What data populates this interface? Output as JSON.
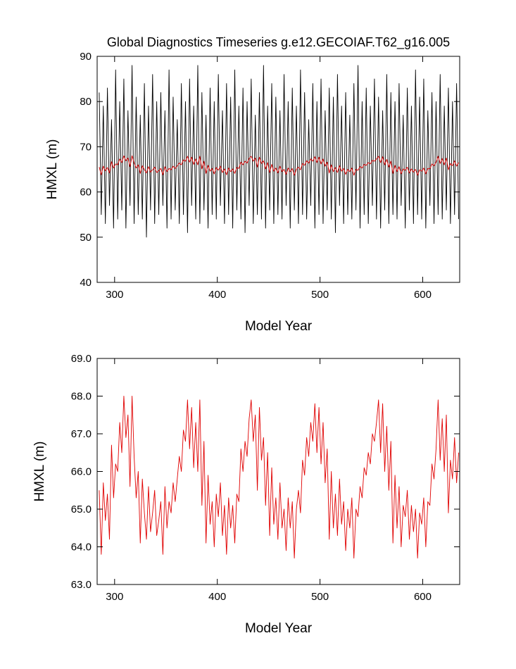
{
  "chart_data": [
    {
      "type": "line",
      "title": "Global Diagnostics Timeseries g.e12.GECOIAF.T62_g16.005",
      "x_label": "Model Year",
      "y_label": "HMXL (m)",
      "xlim": [
        283,
        636
      ],
      "xticks": [
        300,
        400,
        500,
        600
      ],
      "ylim": [
        40,
        90
      ],
      "yticks": [
        40,
        50,
        60,
        70,
        80,
        90
      ],
      "x": [
        285,
        287,
        289,
        291,
        293,
        295,
        297,
        299,
        301,
        303,
        305,
        307,
        309,
        311,
        313,
        315,
        317,
        319,
        321,
        323,
        325,
        327,
        329,
        331,
        333,
        335,
        337,
        339,
        341,
        343,
        345,
        347,
        349,
        351,
        353,
        355,
        357,
        359,
        361,
        363,
        365,
        367,
        369,
        371,
        373,
        375,
        377,
        379,
        381,
        383,
        385,
        387,
        389,
        391,
        393,
        395,
        397,
        399,
        401,
        403,
        405,
        407,
        409,
        411,
        413,
        415,
        417,
        419,
        421,
        423,
        425,
        427,
        429,
        431,
        433,
        435,
        437,
        439,
        441,
        443,
        445,
        447,
        449,
        451,
        453,
        455,
        457,
        459,
        461,
        463,
        465,
        467,
        469,
        471,
        473,
        475,
        477,
        479,
        481,
        483,
        485,
        487,
        489,
        491,
        493,
        495,
        497,
        499,
        501,
        503,
        505,
        507,
        509,
        511,
        513,
        515,
        517,
        519,
        521,
        523,
        525,
        527,
        529,
        531,
        533,
        535,
        537,
        539,
        541,
        543,
        545,
        547,
        549,
        551,
        553,
        555,
        557,
        559,
        561,
        563,
        565,
        567,
        569,
        571,
        573,
        575,
        577,
        579,
        581,
        583,
        585,
        587,
        589,
        591,
        593,
        595,
        597,
        599,
        601,
        603,
        605,
        607,
        609,
        611,
        613,
        615,
        617,
        619,
        621,
        623,
        625,
        627,
        629,
        631,
        633,
        635
      ],
      "series": [
        {
          "color": "#000000",
          "values": [
            82,
            55,
            79,
            53,
            83,
            57,
            76,
            52,
            87,
            54,
            80,
            56,
            85,
            52,
            78,
            57,
            88,
            53,
            81,
            55,
            77,
            54,
            84,
            50,
            79,
            56,
            86,
            53,
            80,
            55,
            82,
            57,
            78,
            52,
            87,
            54,
            81,
            56,
            76,
            53,
            84,
            55,
            80,
            51,
            85,
            57,
            79,
            54,
            88,
            53,
            82,
            56,
            77,
            52,
            83,
            55,
            80,
            54,
            86,
            57,
            78,
            53,
            84,
            55,
            81,
            52,
            87,
            56,
            79,
            54,
            83,
            51,
            80,
            57,
            85,
            53,
            77,
            55,
            82,
            54,
            88,
            52,
            79,
            56,
            84,
            53,
            81,
            55,
            78,
            54,
            86,
            57,
            80,
            52,
            83,
            56,
            79,
            53,
            87,
            55,
            82,
            54,
            76,
            57,
            84,
            52,
            80,
            55,
            85,
            53,
            78,
            56,
            83,
            54,
            81,
            51,
            86,
            57,
            79,
            53,
            82,
            55,
            77,
            54,
            84,
            56,
            88,
            52,
            80,
            55,
            83,
            53,
            79,
            57,
            85,
            54,
            81,
            52,
            78,
            56,
            86,
            53,
            82,
            55,
            80,
            54,
            84,
            57,
            77,
            52,
            83,
            56,
            79,
            53,
            87,
            55,
            81,
            54,
            85,
            52,
            78,
            57,
            82,
            53,
            80,
            55,
            86,
            54,
            79,
            56,
            83,
            53,
            80,
            55,
            84,
            54
          ]
        },
        {
          "color": "#e00000",
          "values": [
            65.5,
            63.8,
            65.7,
            64.7,
            65.4,
            64.2,
            66.7,
            65.3,
            66.2,
            66.0,
            67.3,
            66.5,
            68.0,
            66.9,
            67.5,
            65.6,
            68.0,
            66.4,
            65.3,
            66.0,
            64.1,
            65.8,
            64.9,
            64.2,
            65.6,
            64.4,
            64.9,
            65.5,
            64.3,
            64.7,
            65.2,
            63.8,
            65.6,
            64.5,
            65.2,
            64.9,
            65.7,
            65.2,
            65.8,
            66.4,
            66.0,
            67.1,
            66.8,
            67.9,
            66.6,
            67.7,
            66.1,
            67.3,
            66.0,
            67.9,
            65.1,
            66.8,
            64.1,
            65.9,
            64.6,
            65.2,
            64.0,
            65.4,
            64.8,
            65.7,
            64.3,
            65.1,
            63.8,
            65.3,
            64.5,
            65.1,
            64.1,
            65.4,
            65.2,
            66.6,
            66.0,
            66.8,
            66.4,
            67.4,
            67.9,
            66.8,
            67.5,
            65.5,
            67.7,
            66.3,
            66.9,
            65.1,
            66.5,
            64.3,
            66.1,
            64.6,
            65.3,
            64.2,
            65.7,
            64.5,
            65.0,
            63.9,
            65.3,
            64.5,
            65.2,
            63.7,
            65.0,
            65.5,
            64.9,
            66.3,
            65.9,
            66.9,
            66.4,
            67.3,
            66.8,
            67.8,
            66.5,
            67.7,
            66.2,
            67.3,
            65.7,
            66.6,
            64.2,
            66.0,
            64.5,
            65.4,
            64.3,
            65.8,
            64.6,
            65.2,
            63.9,
            65.0,
            64.5,
            65.3,
            63.7,
            65.0,
            64.8,
            65.6,
            65.3,
            66.1,
            65.9,
            66.5,
            66.2,
            67.0,
            66.8,
            67.3,
            67.9,
            66.5,
            67.8,
            66.0,
            67.2,
            65.5,
            66.8,
            64.1,
            65.9,
            64.5,
            65.6,
            64.0,
            65.1,
            64.8,
            65.5,
            64.2,
            65.1,
            64.4,
            65.0,
            63.7,
            64.9,
            64.6,
            65.3,
            64.0,
            65.2,
            65.1,
            66.2,
            65.8,
            66.6,
            67.9,
            66.3,
            67.4,
            66.0,
            67.5,
            64.9,
            66.3,
            65.8,
            66.9,
            65.7,
            66.5
          ]
        }
      ]
    },
    {
      "type": "line",
      "x_label": "Model Year",
      "y_label": "HMXL (m)",
      "xlim": [
        283,
        636
      ],
      "xticks": [
        300,
        400,
        500,
        600
      ],
      "ylim": [
        63,
        69
      ],
      "yticks": [
        {
          "value": 63,
          "label": "63.0"
        },
        {
          "value": 64,
          "label": "64.0"
        },
        {
          "value": 65,
          "label": "65.0"
        },
        {
          "value": 66,
          "label": "66.0"
        },
        {
          "value": 67,
          "label": "67.0"
        },
        {
          "value": 68,
          "label": "68.0"
        },
        {
          "value": 69,
          "label": "69.0"
        }
      ],
      "x": [
        285,
        287,
        289,
        291,
        293,
        295,
        297,
        299,
        301,
        303,
        305,
        307,
        309,
        311,
        313,
        315,
        317,
        319,
        321,
        323,
        325,
        327,
        329,
        331,
        333,
        335,
        337,
        339,
        341,
        343,
        345,
        347,
        349,
        351,
        353,
        355,
        357,
        359,
        361,
        363,
        365,
        367,
        369,
        371,
        373,
        375,
        377,
        379,
        381,
        383,
        385,
        387,
        389,
        391,
        393,
        395,
        397,
        399,
        401,
        403,
        405,
        407,
        409,
        411,
        413,
        415,
        417,
        419,
        421,
        423,
        425,
        427,
        429,
        431,
        433,
        435,
        437,
        439,
        441,
        443,
        445,
        447,
        449,
        451,
        453,
        455,
        457,
        459,
        461,
        463,
        465,
        467,
        469,
        471,
        473,
        475,
        477,
        479,
        481,
        483,
        485,
        487,
        489,
        491,
        493,
        495,
        497,
        499,
        501,
        503,
        505,
        507,
        509,
        511,
        513,
        515,
        517,
        519,
        521,
        523,
        525,
        527,
        529,
        531,
        533,
        535,
        537,
        539,
        541,
        543,
        545,
        547,
        549,
        551,
        553,
        555,
        557,
        559,
        561,
        563,
        565,
        567,
        569,
        571,
        573,
        575,
        577,
        579,
        581,
        583,
        585,
        587,
        589,
        591,
        593,
        595,
        597,
        599,
        601,
        603,
        605,
        607,
        609,
        611,
        613,
        615,
        617,
        619,
        621,
        623,
        625,
        627,
        629,
        631,
        633,
        635
      ],
      "series": [
        {
          "color": "#e00000",
          "values": [
            65.5,
            63.8,
            65.7,
            64.7,
            65.4,
            64.2,
            66.7,
            65.3,
            66.2,
            66.0,
            67.3,
            66.5,
            68.0,
            66.9,
            67.5,
            65.6,
            68.0,
            66.4,
            65.3,
            66.0,
            64.1,
            65.8,
            64.9,
            64.2,
            65.6,
            64.4,
            64.9,
            65.5,
            64.3,
            64.7,
            65.2,
            63.8,
            65.6,
            64.5,
            65.2,
            64.9,
            65.7,
            65.2,
            65.8,
            66.4,
            66.0,
            67.1,
            66.8,
            67.9,
            66.6,
            67.7,
            66.1,
            67.3,
            66.0,
            67.9,
            65.1,
            66.8,
            64.1,
            65.9,
            64.6,
            65.2,
            64.0,
            65.4,
            64.8,
            65.7,
            64.3,
            65.1,
            63.8,
            65.3,
            64.5,
            65.1,
            64.1,
            65.4,
            65.2,
            66.6,
            66.0,
            66.8,
            66.4,
            67.4,
            67.9,
            66.8,
            67.5,
            65.5,
            67.7,
            66.3,
            66.9,
            65.1,
            66.5,
            64.3,
            66.1,
            64.6,
            65.3,
            64.2,
            65.7,
            64.5,
            65.0,
            63.9,
            65.3,
            64.5,
            65.2,
            63.7,
            65.0,
            65.5,
            64.9,
            66.3,
            65.9,
            66.9,
            66.4,
            67.3,
            66.8,
            67.8,
            66.5,
            67.7,
            66.2,
            67.3,
            65.7,
            66.6,
            64.2,
            66.0,
            64.5,
            65.4,
            64.3,
            65.8,
            64.6,
            65.2,
            63.9,
            65.0,
            64.5,
            65.3,
            63.7,
            65.0,
            64.8,
            65.6,
            65.3,
            66.1,
            65.9,
            66.5,
            66.2,
            67.0,
            66.8,
            67.3,
            67.9,
            66.5,
            67.8,
            66.0,
            67.2,
            65.5,
            66.8,
            64.1,
            65.9,
            64.5,
            65.6,
            64.0,
            65.1,
            64.8,
            65.5,
            64.2,
            65.1,
            64.4,
            65.0,
            63.7,
            64.9,
            64.6,
            65.3,
            64.0,
            65.2,
            65.1,
            66.2,
            65.8,
            66.6,
            67.9,
            66.3,
            67.4,
            66.0,
            67.5,
            64.9,
            66.3,
            65.8,
            66.9,
            65.7,
            66.5
          ]
        }
      ]
    }
  ]
}
